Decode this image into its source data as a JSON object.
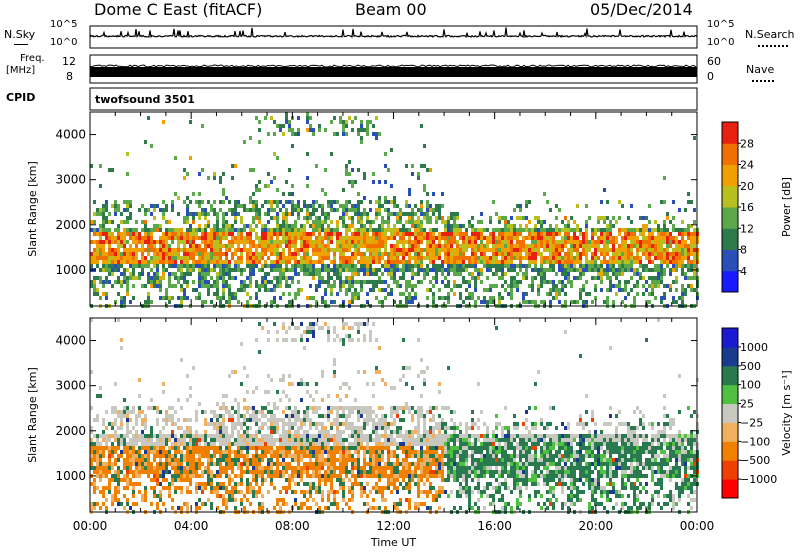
{
  "header": {
    "station": "Dome C East (fitACF)",
    "beam": "Beam 00",
    "date": "05/Dec/2014"
  },
  "aux_panels": {
    "nsky_label": "N.Sky",
    "nsearch_label": "N.Search",
    "freq_label_top": "Freq.",
    "freq_label_unit": "[MHz]",
    "nave_label": "Nave",
    "cpid_label": "CPID",
    "cpid_value": "twofsound 3501",
    "noise_ticks": [
      "10^5",
      "10^0"
    ],
    "freq_ticks": [
      "12",
      "8"
    ],
    "nave_ticks": [
      "60",
      "0"
    ]
  },
  "colors": {
    "power_scale": [
      "#1a1aff",
      "#2a4fb8",
      "#2f7a4a",
      "#5aa84a",
      "#b8c020",
      "#f0a000",
      "#f07000",
      "#e82010"
    ],
    "velocity_scale": [
      "#ff0000",
      "#f04000",
      "#f08000",
      "#f0b060",
      "#c8c8c0",
      "#50c040",
      "#2a7a50",
      "#1a3a90",
      "#1a1ad0"
    ]
  },
  "chart_data": [
    {
      "type": "heatmap",
      "name": "power",
      "xlabel": "",
      "ylabel": "Slant Range [km]",
      "x_ticks": [
        "00:00",
        "04:00",
        "08:00",
        "12:00",
        "16:00",
        "20:00",
        "00:00"
      ],
      "y_ticks": [
        1000,
        2000,
        3000,
        4000
      ],
      "ylim": [
        200,
        4500
      ],
      "colorbar": {
        "label": "Power [dB]",
        "ticks": [
          "28",
          "24",
          "20",
          "16",
          "12",
          "8",
          "4"
        ],
        "range": [
          0,
          32
        ]
      }
    },
    {
      "type": "heatmap",
      "name": "velocity",
      "xlabel": "Time UT",
      "ylabel": "Slant Range [km]",
      "x_ticks": [
        "00:00",
        "04:00",
        "08:00",
        "12:00",
        "16:00",
        "20:00",
        "00:00"
      ],
      "y_ticks": [
        1000,
        2000,
        3000,
        4000
      ],
      "ylim": [
        200,
        4500
      ],
      "colorbar": {
        "label": "Velocity [m s⁻¹]",
        "ticks": [
          "1000",
          "500",
          "100",
          "25",
          "−25",
          "−100",
          "−500",
          "−1000"
        ]
      }
    }
  ]
}
